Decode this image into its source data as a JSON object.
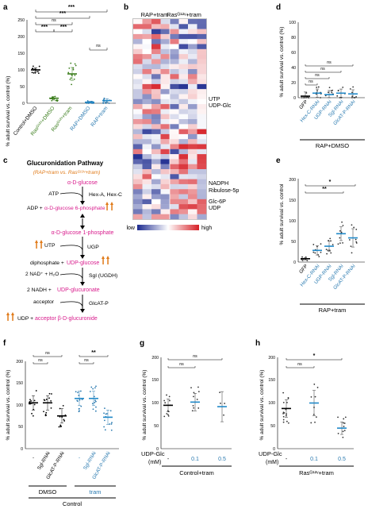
{
  "panels": {
    "a": {
      "label": "a",
      "ylabel": "% adult survival vs. control (%)",
      "yticks": [
        "0",
        "50",
        "100",
        "150",
        "200",
        "250"
      ],
      "groups": [
        {
          "label": "Control+DMSO",
          "color": "#000000",
          "mean": 100
        },
        {
          "label": "Rasᴳ¹²ᵛ+DMSO",
          "color": "#3a7d1c",
          "mean": 15
        },
        {
          "label": "Rasᴳ¹²ᵛ+tram",
          "color": "#3a7d1c",
          "mean": 88
        },
        {
          "label": "RAP+DMSO",
          "color": "#2a7ab0",
          "mean": 3
        },
        {
          "label": "RAP+tram",
          "color": "#2a7ab0",
          "mean": 8
        }
      ],
      "sig": [
        "***",
        "***",
        "***",
        "ns",
        "***",
        "ns"
      ]
    },
    "b": {
      "label": "b",
      "col_headers": [
        "RAP+tram",
        "Rasᴳ¹²ᵛ+tram"
      ],
      "row_labels": [
        "UTP",
        "UDP-Glc",
        "NADPH",
        "Ribulose-5p",
        "Glc-6P",
        "UDP"
      ],
      "scale_low": "low",
      "scale_high": "high"
    },
    "c": {
      "label": "c",
      "title": "Glucuronidation Pathway",
      "subtitle": "(RAP+tram vs. Rasᴳ¹²ᵛ+tram)",
      "steps": {
        "glucose": "α-D-glucose",
        "atp": "ATP",
        "hex": "Hex-A, Hex-C",
        "adp": "ADP +",
        "g6p": "α-D-glucose 6-phosphate",
        "g1p": "α-D-glucose 1-phosphate",
        "utp": "UTP",
        "ugp": "UGP",
        "diphosphate": "diphosphate +",
        "udpglc": "UDP-glucose",
        "nad": "2 NAD⁺ + H₂O",
        "sgl": "Sgl (UGDH)",
        "nadh": "2 NADH +",
        "udpgluc": "UDP-glucuronate",
        "acceptor": "acceptor",
        "glcat": "GlcAT-P",
        "udp": "UDP +",
        "product": "acceptor β-D-glucuronide"
      },
      "colors": {
        "metabolite": "#d81b8c",
        "highlight": "#e07a18",
        "text": "#000000"
      }
    },
    "d": {
      "label": "d",
      "ylabel": "% adult survival vs. control (%)",
      "yticks": [
        "0",
        "20",
        "40",
        "60",
        "80",
        "100"
      ],
      "groups": [
        "GFP",
        "Hex-C-RNAi",
        "UGP-RNAi",
        "Sgl-RNAi",
        "GlcAT-P-RNAi"
      ],
      "means": [
        2,
        6,
        4,
        6,
        5
      ],
      "sig": [
        "ns",
        "ns",
        "ns",
        "ns"
      ],
      "condition": "RAP+DMSO"
    },
    "e": {
      "label": "e",
      "ylabel": "% adult survival vs. control",
      "yticks": [
        "0",
        "50",
        "100",
        "150",
        "200"
      ],
      "groups": [
        "GFP",
        "Hex-C-RNAi",
        "UGP-RNAi",
        "Sgl-RNAi",
        "GlcAT-P-RNAi"
      ],
      "means": [
        8,
        28,
        38,
        68,
        58
      ],
      "sig": [
        "*",
        "**"
      ],
      "condition": "RAP+tram"
    },
    "f": {
      "label": "f",
      "ylabel": "% adult survival vs. control (%)",
      "yticks": [
        "0",
        "50",
        "100",
        "150",
        "200"
      ],
      "groups": [
        {
          "label": "-",
          "color": "#000000",
          "mean": 105
        },
        {
          "label": "Sgl-RNAi",
          "color": "#000000",
          "mean": 105
        },
        {
          "label": "GlcAT-P-RNAi",
          "color": "#000000",
          "mean": 75
        },
        {
          "label": "-",
          "color": "#2a7ab0",
          "mean": 115
        },
        {
          "label": "Sgl-RNAi",
          "color": "#2a7ab0",
          "mean": 115
        },
        {
          "label": "GlcAT-P-RNAi",
          "color": "#2a7ab0",
          "mean": 72
        }
      ],
      "sig": [
        "ns",
        "ns",
        "ns",
        "**"
      ],
      "group_labels": [
        "DMSO",
        "tram"
      ],
      "footer": "Control"
    },
    "g": {
      "label": "g",
      "ylabel": "% adult survival vs. control (%)",
      "yticks": [
        "0",
        "50",
        "100",
        "150",
        "200"
      ],
      "xticks": [
        "-",
        "0.1",
        "0.5"
      ],
      "means": [
        95,
        102,
        92
      ],
      "sig": [
        "ns",
        "ns"
      ],
      "xname": "UDP-Glc",
      "xunit": "(mM)",
      "condition": "Control+tram"
    },
    "h": {
      "label": "h",
      "ylabel": "% adult survival vs. control (%)",
      "yticks": [
        "0",
        "50",
        "100",
        "150",
        "200"
      ],
      "xticks": [
        "-",
        "0.1",
        "0.5"
      ],
      "means": [
        88,
        100,
        45
      ],
      "sig": [
        "ns",
        "*"
      ],
      "xname": "UDP-Glc",
      "xunit": "(mM)",
      "condition": "Rasᴳ¹²ᵛ+tram"
    }
  },
  "colors": {
    "blue": "#2a7ab0",
    "green": "#3a7d1c",
    "heat_low": "#2b3a9c",
    "heat_mid": "#ffffff",
    "heat_high": "#d61f26",
    "bar": "#1f88c8"
  }
}
